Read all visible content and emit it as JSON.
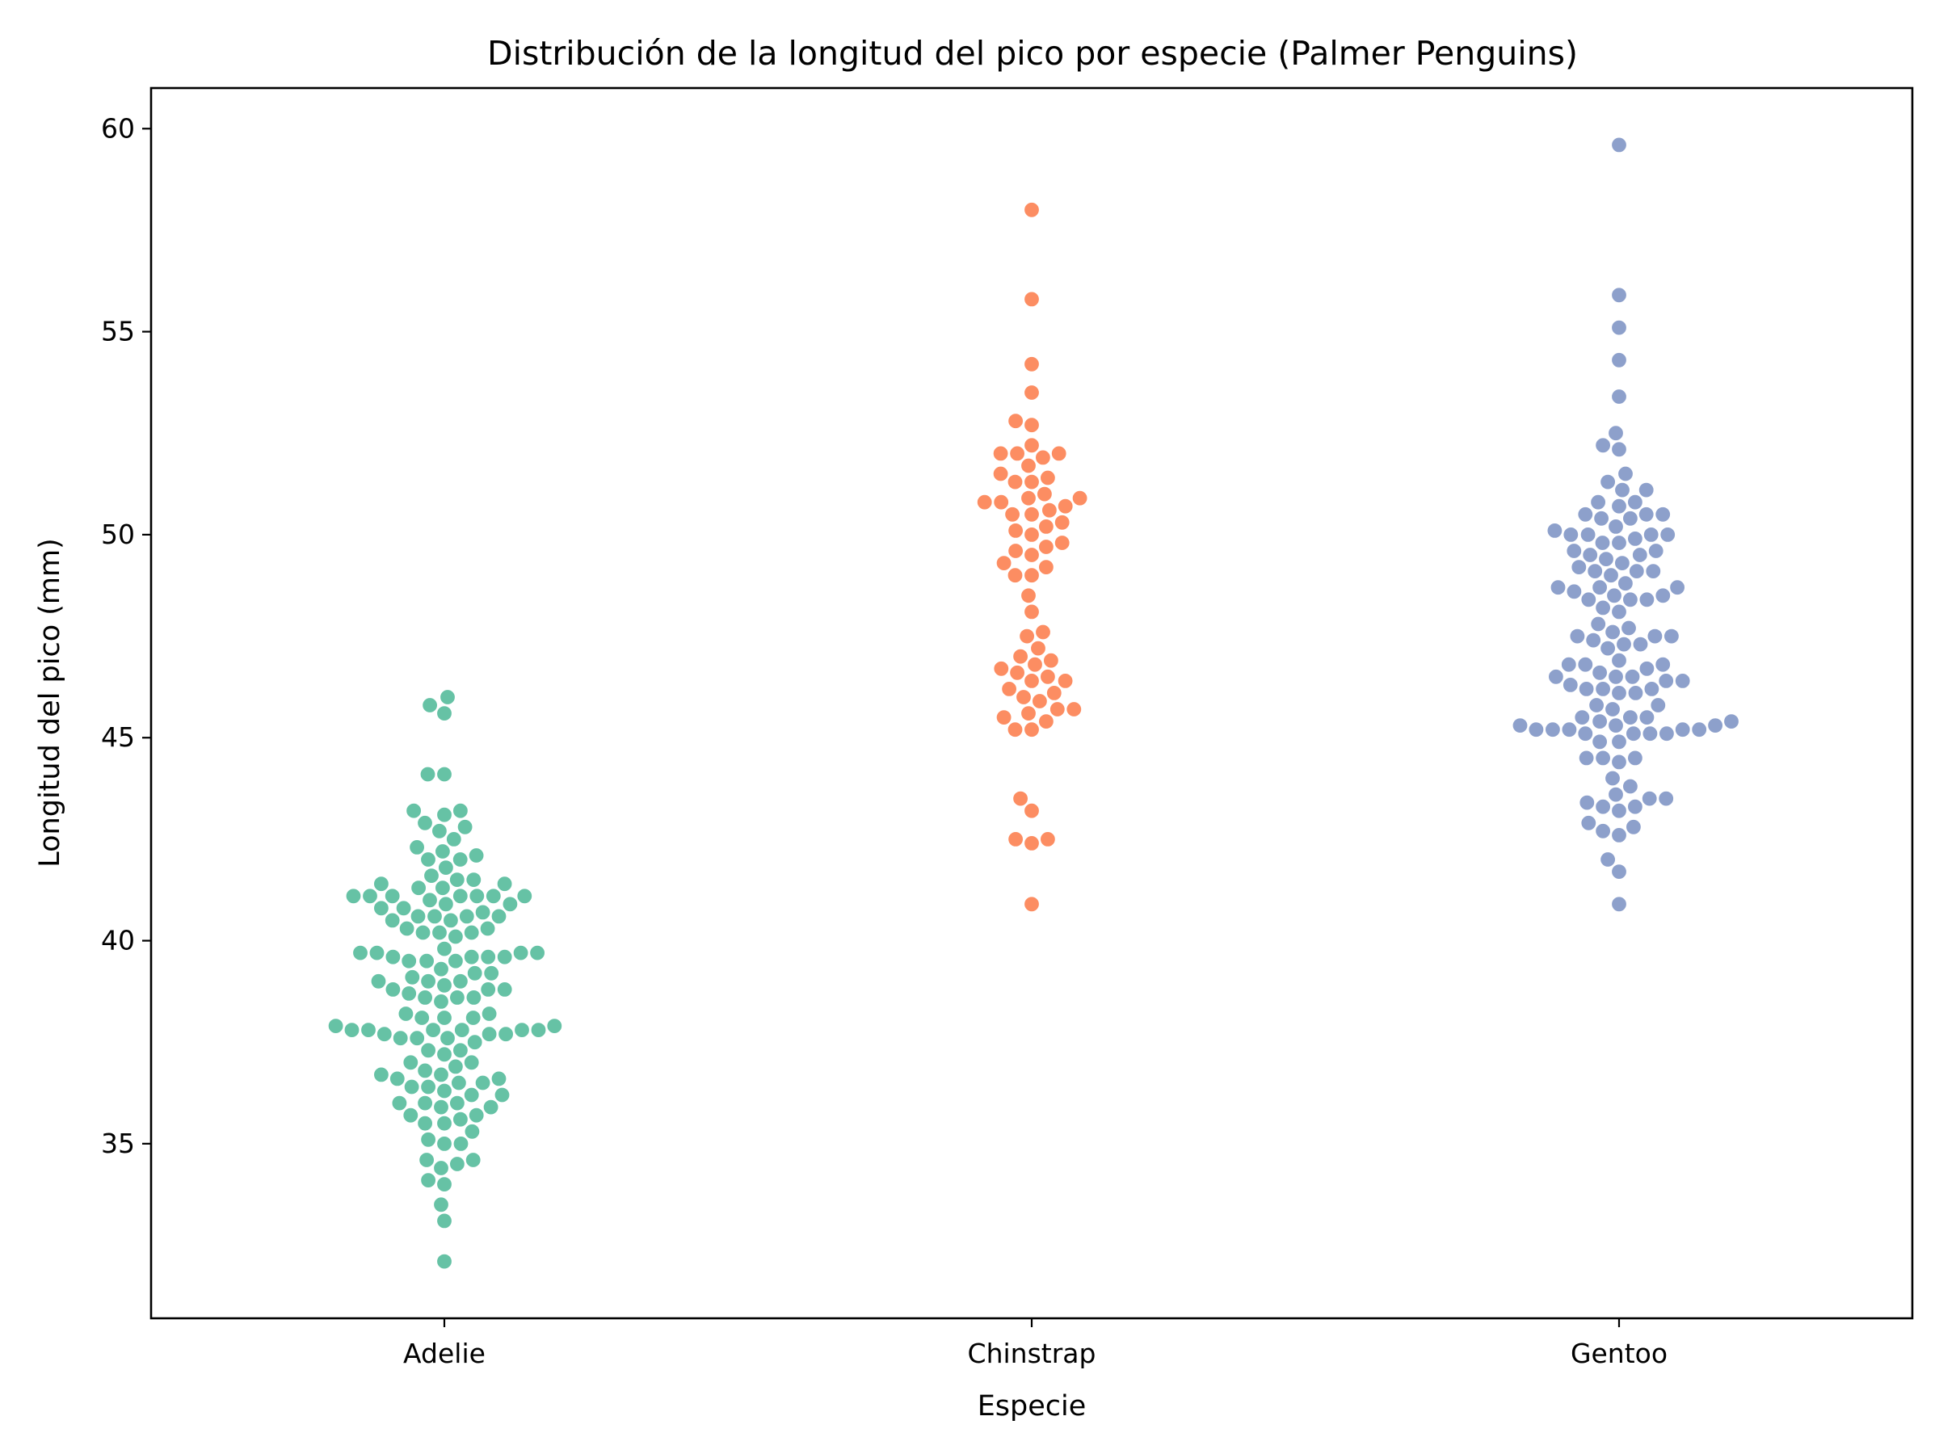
{
  "chart_data": {
    "type": "scatter",
    "subtype": "swarm",
    "title": "Distribución de la longitud del pico por especie (Palmer Penguins)",
    "xlabel": "Especie",
    "ylabel": "Longitud del pico (mm)",
    "categories": [
      "Adelie",
      "Chinstrap",
      "Gentoo"
    ],
    "ylim": [
      30.7,
      61.0
    ],
    "yticks": [
      35,
      40,
      45,
      50,
      55,
      60
    ],
    "grid": false,
    "legend": "none",
    "series": [
      {
        "category": "Adelie",
        "color": "#66c2a5",
        "values": [
          46.0,
          45.8,
          45.6,
          44.1,
          44.1,
          43.2,
          43.2,
          43.1,
          42.9,
          42.8,
          42.7,
          42.5,
          42.3,
          42.2,
          42.1,
          42.0,
          42.0,
          41.8,
          41.6,
          41.5,
          41.5,
          41.4,
          41.4,
          41.3,
          41.3,
          41.1,
          41.1,
          41.1,
          41.1,
          41.1,
          41.1,
          41.1,
          41.0,
          40.9,
          40.9,
          40.8,
          40.8,
          40.7,
          40.6,
          40.6,
          40.6,
          40.6,
          40.5,
          40.5,
          40.3,
          40.3,
          40.2,
          40.2,
          40.2,
          40.1,
          39.8,
          39.7,
          39.7,
          39.7,
          39.7,
          39.6,
          39.6,
          39.6,
          39.6,
          39.5,
          39.5,
          39.5,
          39.3,
          39.2,
          39.2,
          39.1,
          39.0,
          39.0,
          39.0,
          38.9,
          38.8,
          38.8,
          38.8,
          38.7,
          38.6,
          38.6,
          38.6,
          38.5,
          38.2,
          38.2,
          38.1,
          38.1,
          38.1,
          37.9,
          37.9,
          37.8,
          37.8,
          37.8,
          37.8,
          37.8,
          37.8,
          37.7,
          37.7,
          37.7,
          37.6,
          37.6,
          37.6,
          37.5,
          37.3,
          37.3,
          37.2,
          37.0,
          37.0,
          36.9,
          36.8,
          36.7,
          36.7,
          36.6,
          36.6,
          36.5,
          36.5,
          36.4,
          36.4,
          36.3,
          36.2,
          36.2,
          36.0,
          36.0,
          36.0,
          35.9,
          35.9,
          35.7,
          35.7,
          35.6,
          35.5,
          35.5,
          35.3,
          35.1,
          35.0,
          35.0,
          34.6,
          34.6,
          34.5,
          34.4,
          34.1,
          34.0,
          33.5,
          33.1,
          32.1
        ]
      },
      {
        "category": "Chinstrap",
        "color": "#fc8d62",
        "values": [
          58.0,
          55.8,
          54.2,
          53.5,
          52.8,
          52.7,
          52.2,
          52.0,
          52.0,
          52.0,
          51.9,
          51.7,
          51.5,
          51.4,
          51.3,
          51.3,
          51.0,
          50.9,
          50.9,
          50.8,
          50.8,
          50.7,
          50.6,
          50.5,
          50.5,
          50.3,
          50.2,
          50.1,
          50.0,
          49.8,
          49.7,
          49.6,
          49.5,
          49.3,
          49.2,
          49.0,
          49.0,
          48.5,
          48.1,
          47.6,
          47.5,
          47.2,
          47.0,
          46.9,
          46.8,
          46.7,
          46.6,
          46.5,
          46.4,
          46.4,
          46.2,
          46.1,
          46.0,
          45.9,
          45.7,
          45.7,
          45.6,
          45.5,
          45.4,
          45.2,
          45.2,
          43.5,
          43.2,
          42.5,
          42.5,
          42.4,
          40.9
        ]
      },
      {
        "category": "Gentoo",
        "color": "#8da0cb",
        "values": [
          59.6,
          55.9,
          55.1,
          54.3,
          53.4,
          52.5,
          52.2,
          52.1,
          51.5,
          51.3,
          51.1,
          51.1,
          50.8,
          50.8,
          50.7,
          50.5,
          50.5,
          50.5,
          50.4,
          50.4,
          50.2,
          50.1,
          50.0,
          50.0,
          50.0,
          50.0,
          49.9,
          49.8,
          49.8,
          49.6,
          49.6,
          49.5,
          49.5,
          49.4,
          49.3,
          49.2,
          49.1,
          49.1,
          49.1,
          49.0,
          48.8,
          48.7,
          48.7,
          48.7,
          48.6,
          48.5,
          48.5,
          48.4,
          48.4,
          48.4,
          48.2,
          48.1,
          47.8,
          47.7,
          47.6,
          47.5,
          47.5,
          47.5,
          47.4,
          47.3,
          47.3,
          47.2,
          46.9,
          46.8,
          46.8,
          46.8,
          46.7,
          46.6,
          46.5,
          46.5,
          46.5,
          46.4,
          46.4,
          46.3,
          46.2,
          46.2,
          46.2,
          46.1,
          46.1,
          45.8,
          45.8,
          45.7,
          45.5,
          45.5,
          45.5,
          45.4,
          45.4,
          45.3,
          45.3,
          45.3,
          45.2,
          45.2,
          45.2,
          45.2,
          45.2,
          45.1,
          45.1,
          45.1,
          45.1,
          44.9,
          44.9,
          44.5,
          44.5,
          44.5,
          44.4,
          44.0,
          43.8,
          43.6,
          43.5,
          43.5,
          43.4,
          43.3,
          43.3,
          43.2,
          42.9,
          42.8,
          42.7,
          42.6,
          42.0,
          41.7,
          40.9
        ]
      }
    ]
  }
}
